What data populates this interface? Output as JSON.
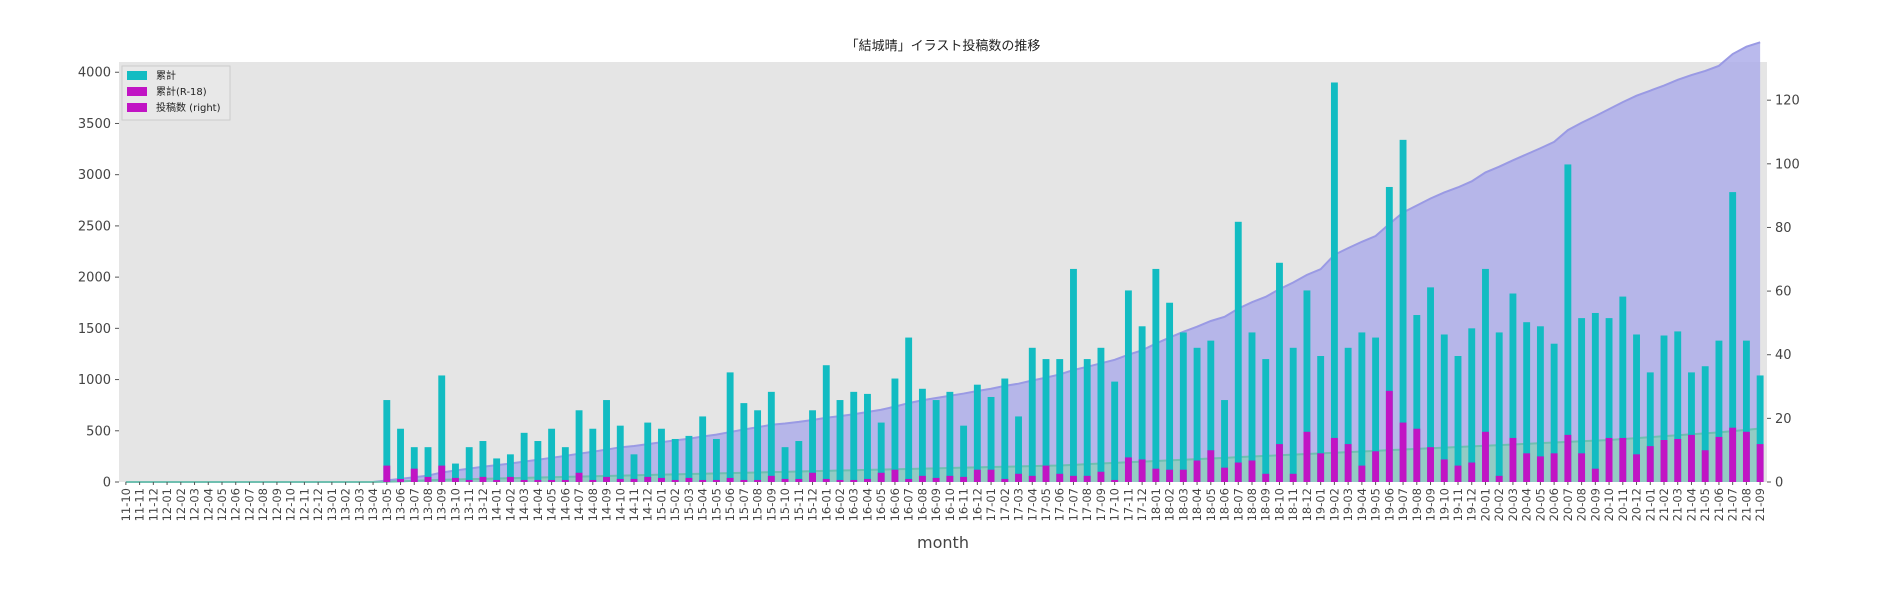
{
  "chart_data": {
    "type": "bar",
    "title": "「結城晴」イラスト投稿数の推移",
    "xlabel": "month",
    "ylabel": "",
    "ylim": [
      0,
      4100
    ],
    "ylim_right": [
      0,
      132
    ],
    "yticks": [
      0,
      500,
      1000,
      1500,
      2000,
      2500,
      3000,
      3500,
      4000
    ],
    "yticks_right": [
      0,
      20,
      40,
      60,
      80,
      100,
      120
    ],
    "grid": false,
    "legend_position": "top-left",
    "colors": {
      "total": "#12bcc2",
      "r18": "#c114c4",
      "area_fill": "#aeaeea",
      "area_line": "#9a9ae4",
      "area_r18_fill": "#8ecfbd",
      "area_r18_line": "#6fbfb0",
      "plot_bg": "#e5e5e5"
    },
    "legend": [
      {
        "label": "累計",
        "color": "#12bcc2"
      },
      {
        "label": "累計(R-18)",
        "color": "#c114c4"
      },
      {
        "label": "投稿数 (right)",
        "color": "#c114c4"
      }
    ],
    "categories": [
      "11-10",
      "11-11",
      "11-12",
      "12-01",
      "12-02",
      "12-03",
      "12-04",
      "12-05",
      "12-06",
      "12-07",
      "12-08",
      "12-09",
      "12-10",
      "12-11",
      "12-12",
      "13-01",
      "13-02",
      "13-03",
      "13-04",
      "13-05",
      "13-06",
      "13-07",
      "13-08",
      "13-09",
      "13-10",
      "13-11",
      "13-12",
      "14-01",
      "14-02",
      "14-03",
      "14-04",
      "14-05",
      "14-06",
      "14-07",
      "14-08",
      "14-09",
      "14-10",
      "14-11",
      "14-12",
      "15-01",
      "15-02",
      "15-03",
      "15-04",
      "15-05",
      "15-06",
      "15-07",
      "15-08",
      "15-09",
      "15-10",
      "15-11",
      "15-12",
      "16-01",
      "16-02",
      "16-03",
      "16-04",
      "16-05",
      "16-06",
      "16-07",
      "16-08",
      "16-09",
      "16-10",
      "16-11",
      "16-12",
      "17-01",
      "17-02",
      "17-03",
      "17-04",
      "17-05",
      "17-06",
      "17-07",
      "17-08",
      "17-09",
      "17-10",
      "17-11",
      "17-12",
      "18-01",
      "18-02",
      "18-03",
      "18-04",
      "18-05",
      "18-06",
      "18-07",
      "18-08",
      "18-09",
      "18-10",
      "18-11",
      "18-12",
      "19-01",
      "19-02",
      "19-03",
      "19-04",
      "19-05",
      "19-06",
      "19-07",
      "19-08",
      "19-09",
      "19-10",
      "19-11",
      "19-12",
      "20-01",
      "20-02",
      "20-03",
      "20-04",
      "20-05",
      "20-06",
      "20-07",
      "20-08",
      "20-09",
      "20-10",
      "20-11",
      "20-12",
      "21-01",
      "21-02",
      "21-03",
      "21-04",
      "21-05",
      "21-06",
      "21-07",
      "21-08",
      "21-09"
    ],
    "series": [
      {
        "name": "累計",
        "values": [
          0,
          0,
          0,
          0,
          0,
          0,
          0,
          0,
          0,
          0,
          0,
          0,
          0,
          0,
          0,
          0,
          0,
          0,
          0,
          800,
          520,
          340,
          340,
          1040,
          180,
          340,
          400,
          230,
          270,
          480,
          400,
          520,
          340,
          700,
          520,
          800,
          550,
          270,
          580,
          520,
          420,
          450,
          640,
          420,
          1070,
          770,
          700,
          880,
          340,
          400,
          700,
          1140,
          800,
          880,
          860,
          580,
          1010,
          1410,
          910,
          800,
          880,
          550,
          950,
          830,
          1010,
          640,
          1310,
          1200,
          1200,
          2080,
          1200,
          1310,
          980,
          1870,
          1520,
          2080,
          1750,
          1460,
          1310,
          1380,
          800,
          2540,
          1460,
          1200,
          2140,
          1310,
          1870,
          1230,
          3900,
          1310,
          1460,
          1410,
          2880,
          3340,
          1630,
          1900,
          1440,
          1230,
          1500,
          2080,
          1460,
          1840,
          1560,
          1520,
          1350,
          3100,
          1600,
          1650,
          1600,
          1810,
          1440,
          1070,
          1430,
          1470,
          1070,
          1130,
          1380,
          2830,
          1380,
          1040
        ]
      },
      {
        "name": "累計(R-18)",
        "values": [
          0,
          0,
          0,
          0,
          0,
          0,
          0,
          0,
          0,
          0,
          0,
          0,
          0,
          0,
          0,
          0,
          0,
          0,
          0,
          160,
          30,
          130,
          50,
          160,
          40,
          20,
          50,
          20,
          50,
          20,
          20,
          20,
          20,
          90,
          20,
          50,
          30,
          30,
          50,
          40,
          20,
          40,
          20,
          20,
          40,
          20,
          20,
          60,
          30,
          30,
          90,
          30,
          20,
          20,
          30,
          90,
          120,
          30,
          60,
          40,
          60,
          50,
          120,
          120,
          30,
          80,
          60,
          160,
          80,
          60,
          60,
          100,
          20,
          240,
          220,
          130,
          120,
          120,
          210,
          310,
          140,
          190,
          210,
          80,
          370,
          80,
          490,
          280,
          430,
          370,
          160,
          300,
          890,
          580,
          520,
          340,
          220,
          160,
          190,
          490,
          60,
          430,
          280,
          250,
          280,
          460,
          280,
          130,
          430,
          430,
          270,
          350,
          410,
          420,
          460,
          310,
          440,
          530,
          490,
          370
        ]
      },
      {
        "name": "投稿数 (right)",
        "values": [
          0,
          0,
          0,
          0,
          0,
          0,
          0,
          0,
          0,
          0,
          0,
          0,
          0,
          0,
          0,
          0,
          0,
          0,
          0,
          0.5,
          1.0,
          1.5,
          2.0,
          3.0,
          3.6,
          4.2,
          4.8,
          5.3,
          5.8,
          6.4,
          7.0,
          7.6,
          8.2,
          8.9,
          9.5,
          10.2,
          10.9,
          11.3,
          11.9,
          12.5,
          13.1,
          13.6,
          14.3,
          14.9,
          15.7,
          16.5,
          17.2,
          18.0,
          18.4,
          18.9,
          19.5,
          20.2,
          20.7,
          21.3,
          22.0,
          22.7,
          23.7,
          24.8,
          25.7,
          26.4,
          27.1,
          27.8,
          28.6,
          29.3,
          30.2,
          30.9,
          31.9,
          32.8,
          33.8,
          35.2,
          36.2,
          37.3,
          38.4,
          40.0,
          41.4,
          43.5,
          45.4,
          47.2,
          48.8,
          50.6,
          51.9,
          54.5,
          56.5,
          58.2,
          60.6,
          62.7,
          65.1,
          66.9,
          71.4,
          73.5,
          75.5,
          77.3,
          81.1,
          84.7,
          86.9,
          89.1,
          91.0,
          92.6,
          94.5,
          97.3,
          99.1,
          101.1,
          103.0,
          104.9,
          106.9,
          110.6,
          112.9,
          115.0,
          117.2,
          119.4,
          121.4,
          123.0,
          124.6,
          126.4,
          127.9,
          129.2,
          130.8,
          134.5,
          136.8,
          138.2
        ]
      },
      {
        "name": "",
        "values": [
          0,
          0,
          0,
          0,
          0,
          0,
          0,
          0,
          0,
          0,
          0,
          0,
          0,
          0,
          0,
          0,
          0,
          0,
          0,
          0.1,
          0.2,
          0.4,
          0.5,
          0.7,
          0.8,
          0.9,
          1.0,
          1.1,
          1.2,
          1.3,
          1.4,
          1.5,
          1.6,
          1.7,
          1.8,
          1.9,
          2.0,
          2.1,
          2.2,
          2.3,
          2.4,
          2.5,
          2.6,
          2.7,
          2.8,
          2.9,
          3.0,
          3.1,
          3.2,
          3.3,
          3.4,
          3.5,
          3.6,
          3.7,
          3.8,
          3.9,
          4.0,
          4.1,
          4.2,
          4.3,
          4.4,
          4.5,
          4.6,
          4.7,
          4.8,
          4.9,
          5.0,
          5.1,
          5.2,
          5.4,
          5.6,
          5.8,
          6.0,
          6.2,
          6.4,
          6.6,
          6.8,
          7.0,
          7.2,
          7.4,
          7.6,
          7.8,
          8.0,
          8.2,
          8.4,
          8.6,
          8.8,
          9.0,
          9.2,
          9.4,
          9.6,
          9.8,
          10.0,
          10.2,
          10.4,
          10.6,
          10.8,
          11.0,
          11.2,
          11.4,
          11.6,
          11.8,
          12.0,
          12.2,
          12.4,
          12.6,
          12.8,
          13.0,
          13.2,
          13.5,
          13.8,
          14.1,
          14.4,
          14.7,
          15.0,
          15.3,
          15.6,
          16.0,
          16.4,
          16.8
        ]
      }
    ]
  }
}
